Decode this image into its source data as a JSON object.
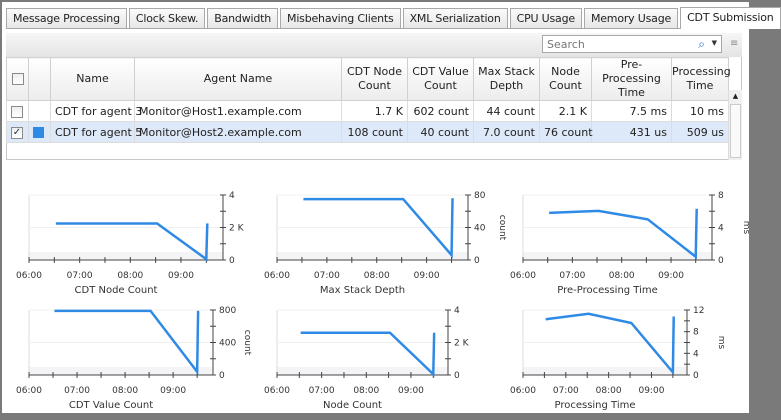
{
  "tabs": [
    "Message Processing",
    "Clock Skew.",
    "Bandwidth",
    "Misbehaving Clients",
    "XML Serialization",
    "CPU Usage",
    "Memory Usage",
    "CDT Submission"
  ],
  "active_tab": "CDT Submission",
  "search": {
    "placeholder": "Search",
    "icon": "search-icon"
  },
  "table": {
    "headers": [
      "Name",
      "Agent Name",
      "CDT Node Count",
      "CDT Value Count",
      "Max Stack Depth",
      "Node Count",
      "Pre-Processing Time",
      "Processing Time"
    ],
    "rows": [
      {
        "checked": false,
        "color": "",
        "cells": [
          "CDT for agent 3",
          "Monitor@Host1.example.com",
          "1.7 K",
          "602 count",
          "44 count",
          "2.1 K",
          "7.5 ms",
          "10 ms"
        ]
      },
      {
        "checked": true,
        "color": "#2f8ae6",
        "cells": [
          "CDT for agent 5",
          "Monitor@Host2.example.com",
          "108 count",
          "40 count",
          "7.0 count",
          "76 count",
          "431 us",
          "509 us"
        ]
      }
    ]
  },
  "chart_data": [
    {
      "type": "line",
      "title": "CDT Node Count",
      "ylabel": "",
      "xticks": [
        "06:00",
        "07:00",
        "08:00",
        "09:00"
      ],
      "xlim": [
        6,
        9.83
      ],
      "ylim": [
        0,
        4
      ],
      "yticks": [
        "0",
        "2 K",
        "4"
      ],
      "yvals": [
        0,
        2,
        4
      ],
      "points": [
        [
          6.53,
          2.25
        ],
        [
          8.53,
          2.25
        ],
        [
          9.5,
          0.05
        ],
        [
          9.52,
          2.25
        ]
      ]
    },
    {
      "type": "line",
      "title": "Max Stack Depth",
      "ylabel": "count",
      "xticks": [
        "06:00",
        "07:00",
        "08:00",
        "09:00"
      ],
      "xlim": [
        6,
        9.83
      ],
      "ylim": [
        0,
        80
      ],
      "yticks": [
        "0",
        "40",
        "80"
      ],
      "yvals": [
        0,
        40,
        80
      ],
      "points": [
        [
          6.53,
          75
        ],
        [
          8.53,
          75
        ],
        [
          9.5,
          6
        ],
        [
          9.52,
          76
        ]
      ]
    },
    {
      "type": "line",
      "title": "Pre-Processing Time",
      "ylabel": "ms",
      "xticks": [
        "06:00",
        "07:00",
        "08:00",
        "09:00"
      ],
      "xlim": [
        6,
        9.83
      ],
      "ylim": [
        0,
        8
      ],
      "yticks": [
        "0",
        "4",
        "8"
      ],
      "yvals": [
        0,
        4,
        8
      ],
      "points": [
        [
          6.53,
          5.8
        ],
        [
          7.53,
          6.05
        ],
        [
          8.53,
          5.0
        ],
        [
          9.5,
          0.4
        ],
        [
          9.52,
          6.3
        ]
      ]
    },
    {
      "type": "line",
      "title": "CDT Value Count",
      "ylabel": "count",
      "xticks": [
        "06:00",
        "07:00",
        "08:00",
        "09:00"
      ],
      "xlim": [
        6,
        9.83
      ],
      "ylim": [
        0,
        800
      ],
      "yticks": [
        "0",
        "400",
        "800"
      ],
      "yvals": [
        0,
        400,
        800
      ],
      "points": [
        [
          6.53,
          790
        ],
        [
          8.53,
          790
        ],
        [
          9.5,
          40
        ],
        [
          9.52,
          790
        ]
      ]
    },
    {
      "type": "line",
      "title": "Node Count",
      "ylabel": "",
      "xticks": [
        "06:00",
        "07:00",
        "08:00",
        "09:00"
      ],
      "xlim": [
        6,
        9.83
      ],
      "ylim": [
        0,
        4
      ],
      "yticks": [
        "0",
        "2 K",
        "4"
      ],
      "yvals": [
        0,
        2,
        4
      ],
      "points": [
        [
          6.53,
          2.6
        ],
        [
          8.53,
          2.6
        ],
        [
          9.5,
          0.05
        ],
        [
          9.52,
          2.6
        ]
      ]
    },
    {
      "type": "line",
      "title": "Processing Time",
      "ylabel": "ms",
      "xticks": [
        "06:00",
        "07:00",
        "08:00",
        "09:00"
      ],
      "xlim": [
        6,
        9.83
      ],
      "ylim": [
        0,
        12
      ],
      "yticks": [
        "0",
        "4",
        "8",
        "12"
      ],
      "yvals": [
        0,
        4,
        8,
        12
      ],
      "points": [
        [
          6.53,
          10.3
        ],
        [
          7.53,
          11.3
        ],
        [
          8.53,
          9.6
        ],
        [
          9.5,
          0.5
        ],
        [
          9.52,
          10.8
        ]
      ]
    }
  ],
  "colors": {
    "series": "#2f8ae6",
    "selection": "#dde8f8"
  }
}
